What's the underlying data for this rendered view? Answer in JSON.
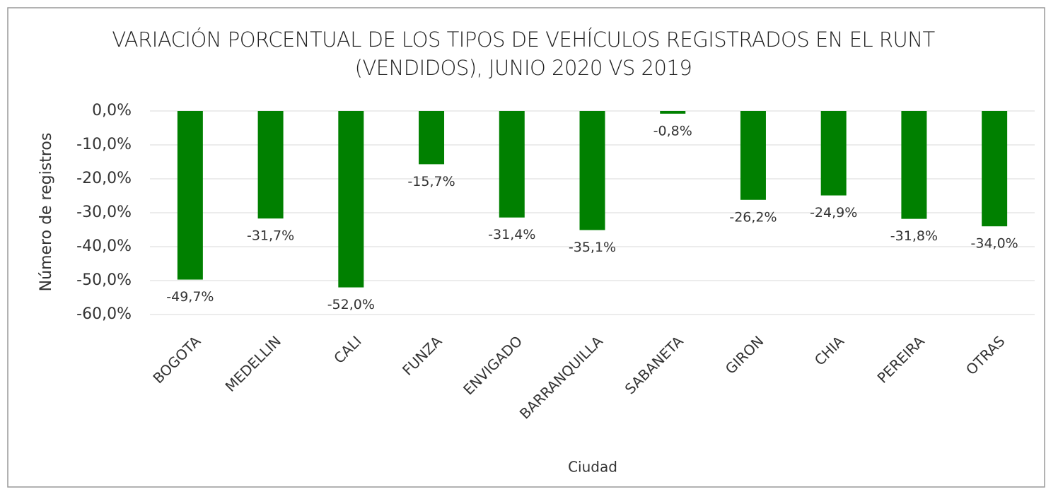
{
  "chart_data": {
    "type": "bar",
    "title": "VARIACIÓN PORCENTUAL DE LOS TIPOS DE VEHÍCULOS REGISTRADOS EN EL RUNT (VENDIDOS), JUNIO 2020 VS 2019",
    "x_label": "Ciudad",
    "y_label": "Número de registros",
    "categories": [
      "BOGOTA",
      "MEDELLIN",
      "CALI",
      "FUNZA",
      "ENVIGADO",
      "BARRANQUILLA",
      "SABANETA",
      "GIRON",
      "CHIA",
      "PEREIRA",
      "OTRAS"
    ],
    "values": [
      -49.7,
      -31.7,
      -52.0,
      -15.7,
      -31.4,
      -35.1,
      -0.8,
      -26.2,
      -24.9,
      -31.8,
      -34.0
    ],
    "value_labels": [
      "-49,7%",
      "-31,7%",
      "-52,0%",
      "-15,7%",
      "-31,4%",
      "-35,1%",
      "-0,8%",
      "-26,2%",
      "-24,9%",
      "-31,8%",
      "-34,0%"
    ],
    "color": "#008000",
    "ylim": [
      -60,
      0
    ],
    "yticks": [
      {
        "value": 0,
        "label": "0,0%"
      },
      {
        "value": -10,
        "label": "-10,0%"
      },
      {
        "value": -20,
        "label": "-20,0%"
      },
      {
        "value": -30,
        "label": "-30,0%"
      },
      {
        "value": -40,
        "label": "-40,0%"
      },
      {
        "value": -50,
        "label": "-50,0%"
      },
      {
        "value": -60,
        "label": "-60,0%"
      }
    ],
    "grid": true
  }
}
